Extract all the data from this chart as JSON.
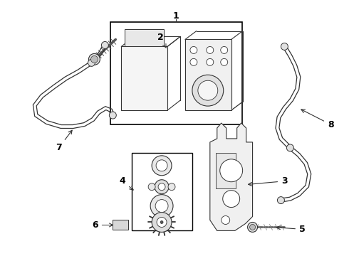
{
  "background_color": "#ffffff",
  "line_color": "#333333",
  "text_color": "#000000",
  "font_size": 8,
  "figsize": [
    4.9,
    3.6
  ],
  "dpi": 100
}
